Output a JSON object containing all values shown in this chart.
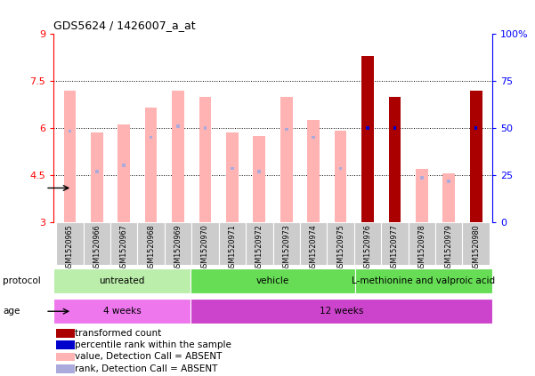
{
  "title": "GDS5624 / 1426007_a_at",
  "samples": [
    "GSM1520965",
    "GSM1520966",
    "GSM1520967",
    "GSM1520968",
    "GSM1520969",
    "GSM1520970",
    "GSM1520971",
    "GSM1520972",
    "GSM1520973",
    "GSM1520974",
    "GSM1520975",
    "GSM1520976",
    "GSM1520977",
    "GSM1520978",
    "GSM1520979",
    "GSM1520980"
  ],
  "value_top": [
    7.2,
    5.85,
    6.1,
    6.65,
    7.2,
    7.0,
    5.85,
    5.75,
    7.0,
    6.25,
    5.9,
    8.3,
    7.0,
    4.7,
    4.55,
    7.2
  ],
  "rank_pos": [
    5.9,
    4.6,
    4.8,
    5.7,
    6.05,
    6.0,
    4.7,
    4.6,
    5.95,
    5.7,
    4.7,
    6.0,
    6.0,
    4.4,
    4.3,
    6.0
  ],
  "is_present": [
    false,
    false,
    false,
    false,
    false,
    false,
    false,
    false,
    false,
    false,
    false,
    true,
    true,
    false,
    false,
    true
  ],
  "ylim": [
    3,
    9
  ],
  "yticks": [
    3,
    4.5,
    6,
    7.5,
    9
  ],
  "ytick_labels": [
    "3",
    "4.5",
    "6",
    "7.5",
    "9"
  ],
  "right_yticks_pct": [
    0,
    25,
    50,
    75,
    100
  ],
  "right_ytick_labels": [
    "0",
    "25",
    "50",
    "75",
    "100%"
  ],
  "bar_color_absent": "#ffb3b3",
  "bar_color_present": "#aa0000",
  "rank_color_absent": "#aaaadd",
  "rank_color_present": "#0000cc",
  "protocol_groups": [
    {
      "label": "untreated",
      "start": 0,
      "end": 5,
      "color": "#bbeeaa"
    },
    {
      "label": "vehicle",
      "start": 5,
      "end": 11,
      "color": "#66dd55"
    },
    {
      "label": "L-methionine and valproic acid",
      "start": 11,
      "end": 16,
      "color": "#66dd55"
    }
  ],
  "age_groups": [
    {
      "label": "4 weeks",
      "start": 0,
      "end": 5,
      "color": "#ee77ee"
    },
    {
      "label": "12 weeks",
      "start": 5,
      "end": 16,
      "color": "#cc44cc"
    }
  ],
  "legend_items": [
    {
      "color": "#aa0000",
      "label": "transformed count"
    },
    {
      "color": "#0000cc",
      "label": "percentile rank within the sample"
    },
    {
      "color": "#ffb3b3",
      "label": "value, Detection Call = ABSENT"
    },
    {
      "color": "#aaaadd",
      "label": "rank, Detection Call = ABSENT"
    }
  ]
}
